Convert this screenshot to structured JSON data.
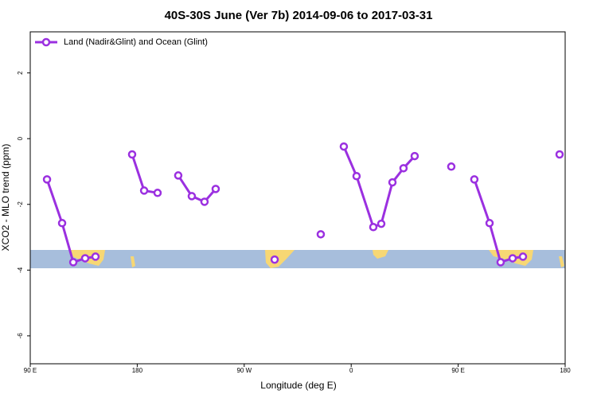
{
  "chart_data": {
    "type": "line",
    "title": "40S-30S June (Ver 7b)   2014-09-06 to 2017-03-31",
    "x_label": "Longitude (deg E)",
    "y_label": "XCO2 - MLO trend (ppm)",
    "x": [
      104.1,
      116.8,
      126.2,
      136.2,
      144.9,
      null,
      175.7,
      185.8,
      197.1,
      null,
      214.5,
      225.9,
      236.6,
      246.0,
      null,
      295.6,
      null,
      334.4,
      null,
      353.8,
      364.5,
      378.6,
      385.3,
      394.7,
      404.0,
      413.4,
      null,
      444.2,
      null,
      463.6,
      476.4,
      485.7,
      495.8,
      504.5,
      null,
      535.3
    ],
    "series": [
      {
        "name": "Land (Nadir&Glint) and Ocean (Glint)",
        "color": "#9b30e0",
        "values": [
          -1.24,
          -2.57,
          -3.76,
          -3.64,
          -3.59,
          null,
          -0.48,
          -1.58,
          -1.65,
          null,
          -1.12,
          -1.75,
          -1.92,
          -1.53,
          null,
          -3.68,
          null,
          -2.91,
          null,
          -0.24,
          -1.14,
          -2.69,
          -2.59,
          -1.33,
          -0.9,
          -0.53,
          null,
          -0.85,
          null,
          -1.24,
          -2.57,
          -3.76,
          -3.64,
          -3.59,
          null,
          -0.48
        ]
      }
    ],
    "xlim": [
      90,
      540
    ],
    "xticks": [
      {
        "value": 90,
        "label": "90 E"
      },
      180,
      {
        "value": 270,
        "label": "90 W"
      },
      {
        "value": 360,
        "label": "0"
      },
      {
        "value": 450,
        "label": "90 E"
      },
      {
        "value": 540,
        "label": "180"
      }
    ],
    "ylim": [
      -6.85,
      3.25
    ],
    "yticks": [
      -6,
      -4,
      -2,
      0,
      2
    ],
    "legend": "top-left"
  }
}
